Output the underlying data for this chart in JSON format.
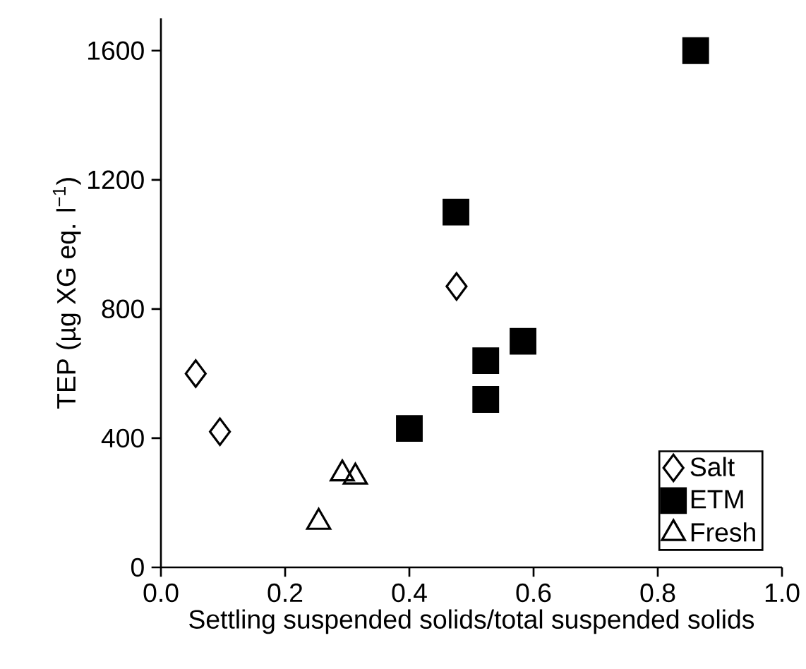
{
  "chart_data": {
    "type": "scatter",
    "xlabel": "Settling suspended solids/total suspended solids",
    "ylabel": "TEP (µg XG eq. l$^{−1}$)",
    "xlim": [
      0,
      1
    ],
    "xticks": [
      {
        "value": 0,
        "label": "0.0"
      },
      {
        "value": 0.2,
        "label": "0.2"
      },
      {
        "value": 0.4,
        "label": "0.4"
      },
      {
        "value": 0.6,
        "label": "0.6"
      },
      {
        "value": 0.8,
        "label": "0.8"
      },
      {
        "value": 1,
        "label": "1.0"
      }
    ],
    "ylim": [
      0,
      1700
    ],
    "yticks": [
      0,
      400,
      800,
      1200,
      1600
    ],
    "grid": false,
    "legend": "bottom right",
    "series": [
      {
        "name": "Salt",
        "color": "#000000",
        "marker": "diamond",
        "x": [
          0.056,
          0.095,
          0.476
        ],
        "values": [
          600,
          420,
          870
        ]
      },
      {
        "name": "ETM",
        "color": "#000000",
        "marker": "square",
        "x": [
          0.4,
          0.475,
          0.523,
          0.523,
          0.583,
          0.861
        ],
        "values": [
          430,
          1100,
          640,
          520,
          700,
          1600
        ]
      },
      {
        "name": "Fresh",
        "color": "#000000",
        "marker": "triangle",
        "x": [
          0.254,
          0.292,
          0.313
        ],
        "values": [
          140,
          290,
          280
        ]
      }
    ]
  }
}
